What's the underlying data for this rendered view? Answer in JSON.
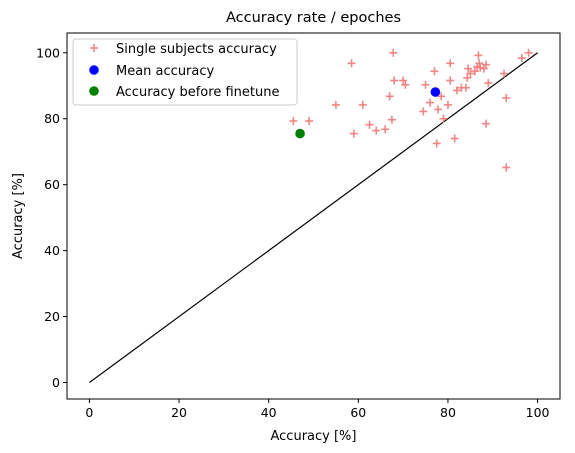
{
  "chart_data": {
    "type": "scatter",
    "title": "Accuracy rate / epoches",
    "xlabel": "Accuracy [%]",
    "ylabel": "Accuracy [%]",
    "xlim": [
      -5,
      105
    ],
    "ylim": [
      -5,
      106
    ],
    "xticks": [
      0,
      20,
      40,
      60,
      80,
      100
    ],
    "yticks": [
      0,
      20,
      40,
      60,
      80,
      100
    ],
    "grid": false,
    "legend_position": "top-left",
    "reference_line": {
      "x": [
        0,
        100
      ],
      "y": [
        0,
        100
      ],
      "color": "#000000"
    },
    "series": [
      {
        "name": "Single subjects accuracy",
        "marker": "plus",
        "color": "#f08080",
        "points": [
          [
            45.5,
            79.3
          ],
          [
            49,
            79.3
          ],
          [
            55,
            84.2
          ],
          [
            58.5,
            96.8
          ],
          [
            59,
            75.5
          ],
          [
            61,
            84.2
          ],
          [
            62.5,
            78.2
          ],
          [
            64,
            76.4
          ],
          [
            66,
            76.8
          ],
          [
            67,
            86.8
          ],
          [
            67.5,
            79.7
          ],
          [
            67.8,
            100
          ],
          [
            68,
            91.6
          ],
          [
            70,
            91.6
          ],
          [
            70.5,
            90.3
          ],
          [
            74.5,
            82.2
          ],
          [
            75,
            90.3
          ],
          [
            76,
            84.9
          ],
          [
            77,
            94.4
          ],
          [
            77.5,
            72.5
          ],
          [
            77.8,
            82.8
          ],
          [
            78.5,
            86.8
          ],
          [
            79,
            80
          ],
          [
            80,
            84.2
          ],
          [
            80.5,
            91.6
          ],
          [
            80.5,
            96.8
          ],
          [
            81.5,
            74
          ],
          [
            82,
            88.6
          ],
          [
            83,
            89.4
          ],
          [
            84,
            89.4
          ],
          [
            84.3,
            92.4
          ],
          [
            84.5,
            95.2
          ],
          [
            85,
            93.7
          ],
          [
            86,
            94.4
          ],
          [
            86.5,
            95.8
          ],
          [
            86.8,
            99.2
          ],
          [
            87,
            96.8
          ],
          [
            87.2,
            95.5
          ],
          [
            88,
            95.2
          ],
          [
            88.5,
            96.4
          ],
          [
            88.5,
            78.5
          ],
          [
            89,
            90.8
          ],
          [
            92.5,
            93.7
          ],
          [
            93,
            86.3
          ],
          [
            93,
            65.2
          ],
          [
            96.5,
            98.4
          ],
          [
            98,
            100
          ]
        ]
      },
      {
        "name": "Mean accuracy",
        "marker": "circle",
        "color": "#0000ff",
        "points": [
          [
            77.2,
            88.1
          ]
        ]
      },
      {
        "name": "Accuracy before finetune",
        "marker": "circle",
        "color": "#008000",
        "points": [
          [
            47,
            75.5
          ]
        ]
      }
    ]
  }
}
